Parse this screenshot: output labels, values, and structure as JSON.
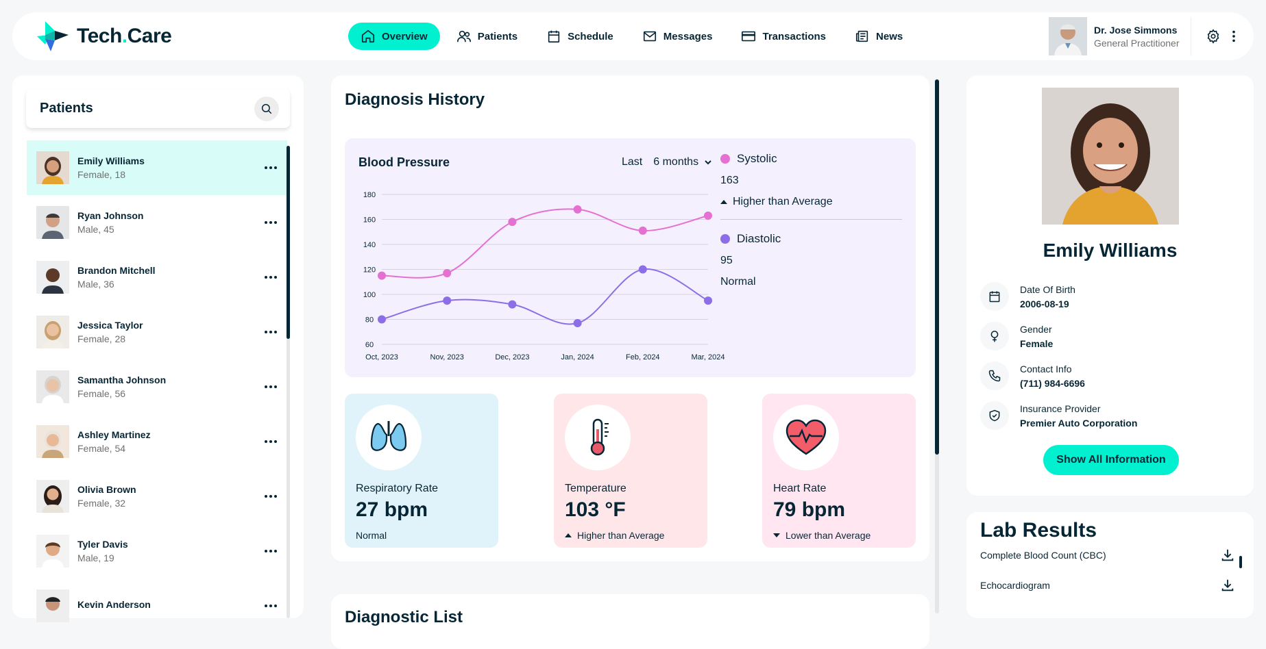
{
  "app": {
    "logo_main": "Tech",
    "logo_dot": ".",
    "logo_end": "Care"
  },
  "nav": [
    {
      "label": "Overview",
      "icon": "home-icon"
    },
    {
      "label": "Patients",
      "icon": "users-icon"
    },
    {
      "label": "Schedule",
      "icon": "calendar-icon"
    },
    {
      "label": "Messages",
      "icon": "mail-icon"
    },
    {
      "label": "Transactions",
      "icon": "credit-card-icon"
    },
    {
      "label": "News",
      "icon": "news-icon"
    }
  ],
  "user": {
    "name": "Dr. Jose Simmons",
    "role": "General Practitioner"
  },
  "patients": {
    "title": "Patients",
    "list": [
      {
        "name": "Emily Williams",
        "meta": "Female, 18"
      },
      {
        "name": "Ryan Johnson",
        "meta": "Male, 45"
      },
      {
        "name": "Brandon Mitchell",
        "meta": "Male, 36"
      },
      {
        "name": "Jessica Taylor",
        "meta": "Female, 28"
      },
      {
        "name": "Samantha Johnson",
        "meta": "Female, 56"
      },
      {
        "name": "Ashley Martinez",
        "meta": "Female, 54"
      },
      {
        "name": "Olivia Brown",
        "meta": "Female, 32"
      },
      {
        "name": "Tyler Davis",
        "meta": "Male, 19"
      },
      {
        "name": "Kevin Anderson",
        "meta": ""
      }
    ]
  },
  "diagnosis": {
    "title": "Diagnosis History",
    "bp_title": "Blood Pressure",
    "filter_label": "Last",
    "filter_value": "6 months",
    "systolic": {
      "name": "Systolic",
      "value": "163",
      "note": "Higher than Average",
      "color": "#e66fd2"
    },
    "diastolic": {
      "name": "Diastolic",
      "value": "95",
      "note": "Normal",
      "color": "#8c6fe6"
    },
    "vitals": [
      {
        "label": "Respiratory Rate",
        "value": "27 bpm",
        "status": "Normal",
        "bg": "#e0f3fa",
        "icon": "lungs-icon"
      },
      {
        "label": "Temperature",
        "value": "103 °F",
        "status": "Higher than Average",
        "bg": "#ffe6e9",
        "icon": "thermometer-icon"
      },
      {
        "label": "Heart Rate",
        "value": "79 bpm",
        "status": "Lower than Average",
        "bg": "#ffe6f1",
        "icon": "heart-icon"
      }
    ],
    "list_title": "Diagnostic List"
  },
  "chart_data": {
    "type": "line",
    "title": "Blood Pressure",
    "categories": [
      "Oct, 2023",
      "Nov, 2023",
      "Dec, 2023",
      "Jan, 2024",
      "Feb, 2024",
      "Mar, 2024"
    ],
    "series": [
      {
        "name": "Systolic",
        "values": [
          115,
          117,
          158,
          168,
          151,
          163
        ],
        "color": "#e66fd2"
      },
      {
        "name": "Diastolic",
        "values": [
          80,
          95,
          92,
          77,
          120,
          95
        ],
        "color": "#8c6fe6"
      }
    ],
    "yticks": [
      60,
      80,
      100,
      120,
      140,
      160,
      180
    ],
    "ylim": [
      60,
      180
    ],
    "grid": true,
    "legend": "right"
  },
  "profile": {
    "name": "Emily Williams",
    "fields": [
      {
        "label": "Date Of Birth",
        "value": "2006-08-19",
        "icon": "calendar-icon"
      },
      {
        "label": "Gender",
        "value": "Female",
        "icon": "female-icon"
      },
      {
        "label": "Contact Info",
        "value": "(711) 984-6696",
        "icon": "phone-icon"
      },
      {
        "label": "Insurance Provider",
        "value": "Premier Auto Corporation",
        "icon": "shield-icon"
      }
    ],
    "button": "Show All Information"
  },
  "lab": {
    "title": "Lab Results",
    "items": [
      "Complete Blood Count (CBC)",
      "Echocardiogram"
    ]
  }
}
